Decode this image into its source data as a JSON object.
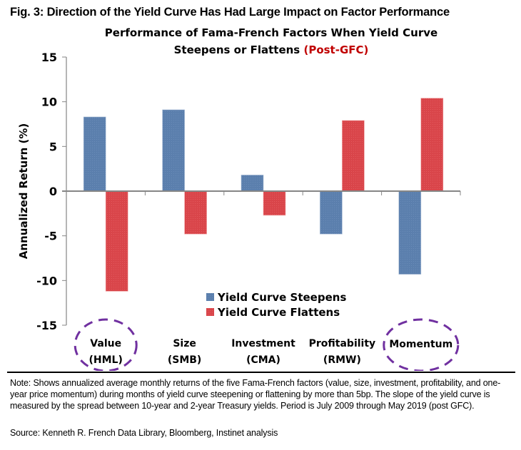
{
  "figure": {
    "title": "Fig. 3: Direction of the Yield Curve Has Had Large Impact on Factor Performance",
    "note": "Note: Shows annualized average monthly returns of the five Fama-French factors (value, size, investment, profitability, and one-year price momentum) during months of yield curve steepening or flattening by more than 5bp. The slope of the yield curve is measured by the spread between 10-year and 2-year Treasury yields. Period is July 2009 through May 2019 (post GFC).",
    "source": "Source: Kenneth R. French Data Library, Bloomberg, Instinet analysis"
  },
  "chart_data": {
    "type": "bar",
    "title_line1": "Performance of Fama-French Factors When Yield Curve",
    "title_line2": "Steepens or Flattens",
    "title_highlight": "(Post-GFC)",
    "xlabel": "",
    "ylabel": "Annualized Return (%)",
    "ylim": [
      -15,
      15
    ],
    "yticks": [
      15,
      10,
      5,
      0,
      -5,
      -10,
      -15
    ],
    "grid": false,
    "legend_position": "bottom-center",
    "categories": [
      {
        "line1": "Value",
        "line2": "(HML)",
        "circled": true
      },
      {
        "line1": "Size",
        "line2": "(SMB)",
        "circled": false
      },
      {
        "line1": "Investment",
        "line2": "(CMA)",
        "circled": false
      },
      {
        "line1": "Profitability",
        "line2": "(RMW)",
        "circled": false
      },
      {
        "line1": "Momentum",
        "line2": "",
        "circled": true
      }
    ],
    "series": [
      {
        "name": "Yield Curve Steepens",
        "color": "#5b7fad",
        "values": [
          8.3,
          9.1,
          1.8,
          -4.8,
          -9.3
        ]
      },
      {
        "name": "Yield Curve Flattens",
        "color": "#d9454a",
        "values": [
          -11.2,
          -4.8,
          -2.7,
          7.9,
          10.4
        ]
      }
    ],
    "annotation_color": "#7030a0",
    "title_highlight_color": "#c00000"
  }
}
